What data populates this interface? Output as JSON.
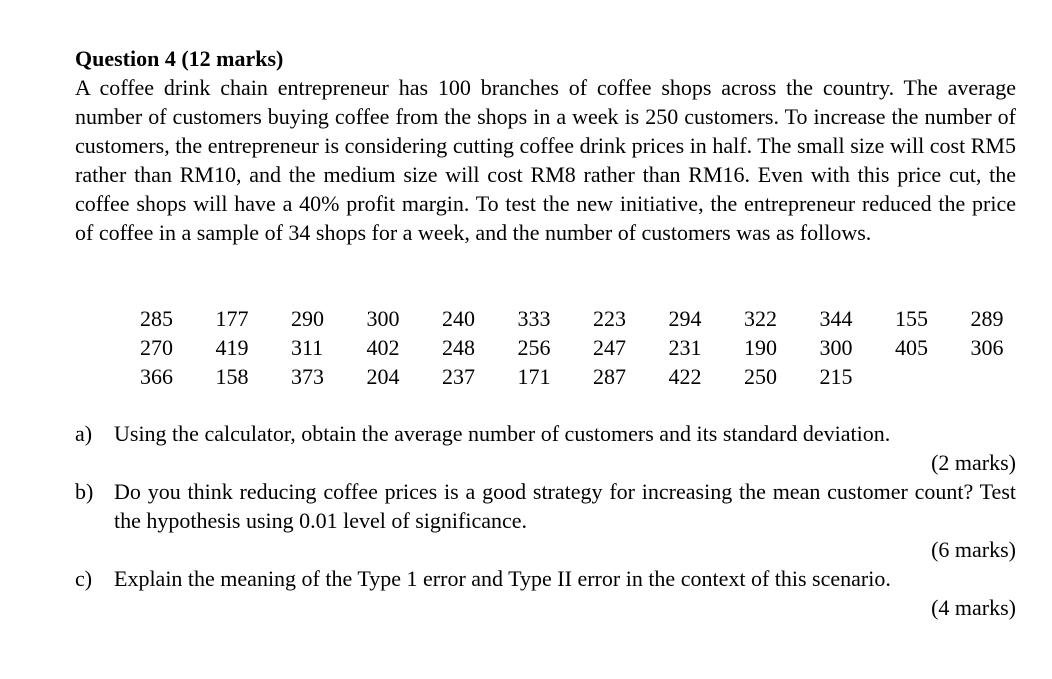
{
  "page": {
    "background_color": "#ffffff",
    "text_color": "#000000",
    "title": "Question 4 (12 marks)",
    "paragraph": "A coffee drink chain entrepreneur has 100 branches of coffee shops across the country. The average number of customers buying coffee from the shops in a week is 250 customers. To increase the number of customers, the entrepreneur is considering cutting coffee drink prices in half. The small size will cost RM5 rather than RM10, and the medium size will cost RM8 rather than RM16. Even with this price cut, the coffee shops will have a 40% profit margin. To test the new initiative, the entrepreneur reduced the price of coffee in a sample of 34 shops for a week, and the number of customers was as follows.",
    "data_rows": [
      [
        "285",
        "177",
        "290",
        "300",
        "240",
        "333",
        "223",
        "294",
        "322",
        "344",
        "155",
        "289"
      ],
      [
        "270",
        "419",
        "311",
        "402",
        "248",
        "256",
        "247",
        "231",
        "190",
        "300",
        "405",
        "306"
      ],
      [
        "366",
        "158",
        "373",
        "204",
        "237",
        "171",
        "287",
        "422",
        "250",
        "215"
      ]
    ],
    "questions": [
      {
        "label": "a)",
        "text": "Using the calculator, obtain the average number of customers and its standard deviation.",
        "marks": "(2 marks)"
      },
      {
        "label": "b)",
        "text": "Do you think reducing coffee prices is a good strategy for increasing the mean customer count? Test the hypothesis using 0.01 level of significance.",
        "marks": "(6 marks)"
      },
      {
        "label": "c)",
        "text": "Explain the meaning of the Type 1 error and Type II error in the context of this scenario.",
        "marks": "(4 marks)"
      }
    ]
  }
}
